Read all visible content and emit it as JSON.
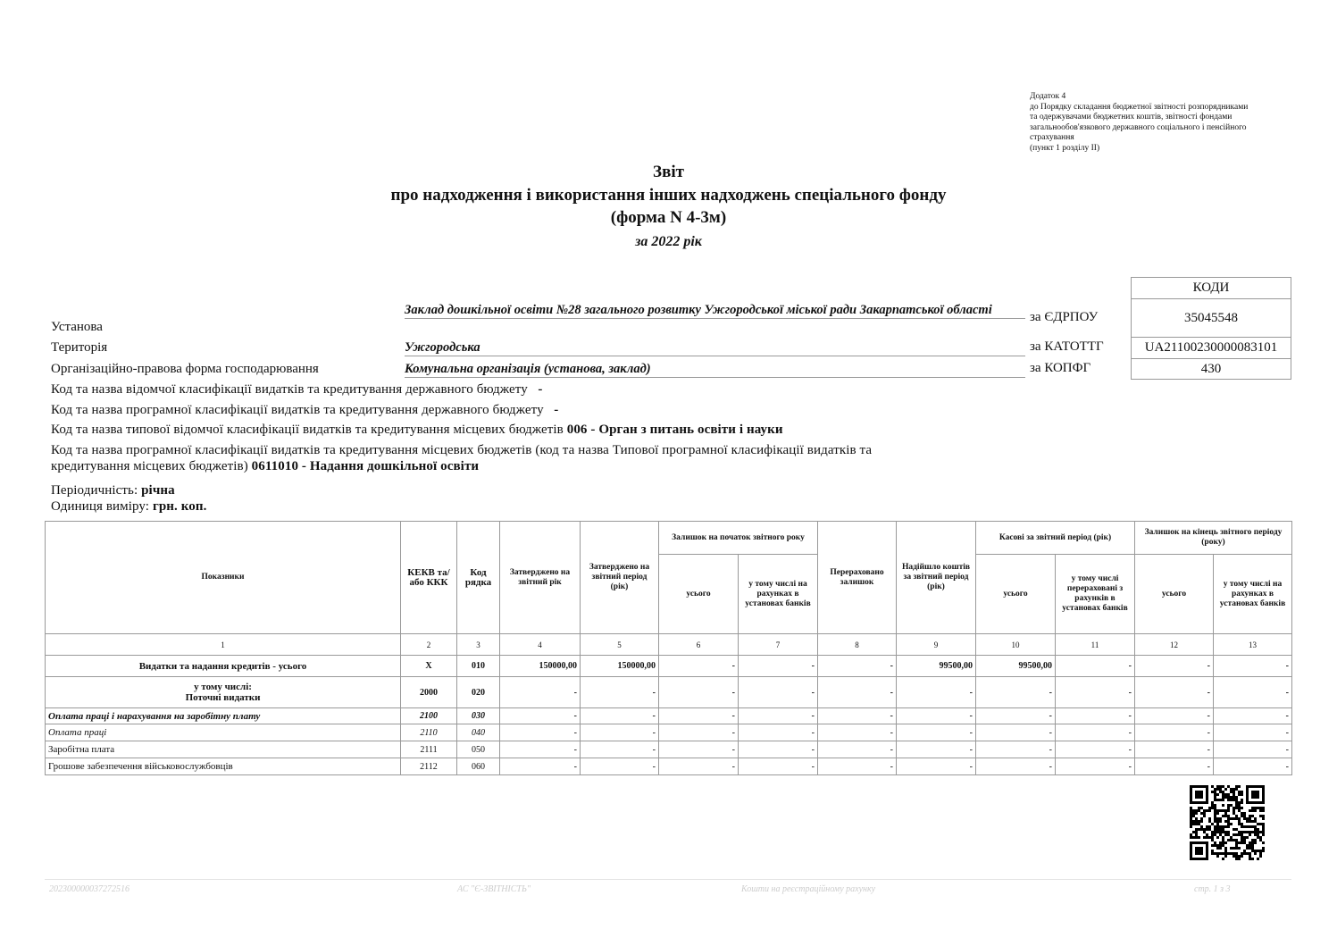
{
  "appendix": [
    "Додаток 4",
    "до Порядку складання бюджетної звітності розпорядниками",
    "та одержувачами бюджетних коштів, звітності фондами",
    "загальнообов'язкового державного соціального і пенсійного",
    "страхування",
    "(пункт 1 розділу ІІ)"
  ],
  "title": {
    "line1": "Звіт",
    "line2": "про надходження і використання інших надходжень спеціального фонду",
    "line3": "(форма N 4-3м)",
    "period": "за 2022 рік"
  },
  "codes": {
    "header": "КОДИ",
    "edrpou_label": "за ЄДРПОУ",
    "edrpou": "35045548",
    "katottg_label": "за КАТОТТГ",
    "katottg": "UA21100230000083101",
    "kopfg_label": "за КОПФГ",
    "kopfg": "430"
  },
  "fields": {
    "institution_label": "Установа",
    "institution": "Заклад дошкільної освіти №28 загального розвитку Ужгородської міської ради Закарпатської області",
    "territory_label": "Територія",
    "territory": "Ужгородська",
    "form_label": "Організаційно-правова форма господарювання",
    "form": "Комунальна організація (установа, заклад)"
  },
  "classif": {
    "l1": "Код та назва відомчої класифікації видатків та кредитування державного бюджету",
    "v1": "-",
    "l2": "Код та назва програмної класифікації видатків та кредитування державного бюджету",
    "v2": "-",
    "l3": "Код та назва типової відомчої класифікації видатків та кредитування місцевих бюджетів",
    "v3": "006 - Орган з питань освіти і науки",
    "l4a": "Код та назва програмної класифікації видатків та кредитування місцевих бюджетів (код та назва Типової програмної класифікації видатків та",
    "l4b": "кредитування місцевих бюджетів)",
    "v4": "0611010  - Надання дошкільної освіти"
  },
  "periodicity_label": "Періодичність:",
  "periodicity": "річна",
  "unit_label": "Одиниця виміру:",
  "unit": "грн. коп.",
  "table": {
    "h": {
      "c1": "Показники",
      "c2": "КЕКВ та/або ККК",
      "c3": "Код рядка",
      "c4": "Затверджено на звітний рік",
      "c5": "Затверджено на звітний період (рік)",
      "g67": "Залишок на початок звітного року",
      "c6": "усього",
      "c7": "у тому числі на рахунках в установах банків",
      "c8": "Перераховано залишок",
      "c9": "Надійшло коштів за звітний період (рік)",
      "g1011": "Касові за звітний період (рік)",
      "c10": "усього",
      "c11": "у тому числі перераховані з рахунків в установах банків",
      "g1213": "Залишок на кінець звітного періоду (року)",
      "c12": "усього",
      "c13": "у тому числі на рахунках в установах банків"
    },
    "col_numbers": [
      "1",
      "2",
      "3",
      "4",
      "5",
      "6",
      "7",
      "8",
      "9",
      "10",
      "11",
      "12",
      "13"
    ],
    "rows": [
      {
        "name": "Видатки та надання кредитів - усього",
        "kekv": "X",
        "code": "010",
        "v": [
          "150000,00",
          "150000,00",
          "-",
          "-",
          "-",
          "99500,00",
          "99500,00",
          "-",
          "-",
          "-"
        ]
      },
      {
        "name": "у тому числі:",
        "name2": "Поточні  видатки",
        "kekv": "2000",
        "code": "020",
        "v": [
          "-",
          "-",
          "-",
          "-",
          "-",
          "-",
          "-",
          "-",
          "-",
          "-"
        ]
      },
      {
        "name": "Оплата праці і нарахування на заробітну плату",
        "kekv": "2100",
        "code": "030",
        "v": [
          "-",
          "-",
          "-",
          "-",
          "-",
          "-",
          "-",
          "-",
          "-",
          "-"
        ]
      },
      {
        "name": "Оплата праці",
        "kekv": "2110",
        "code": "040",
        "v": [
          "-",
          "-",
          "-",
          "-",
          "-",
          "-",
          "-",
          "-",
          "-",
          "-"
        ]
      },
      {
        "name": "Заробітна плата",
        "kekv": "2111",
        "code": "050",
        "v": [
          "-",
          "-",
          "-",
          "-",
          "-",
          "-",
          "-",
          "-",
          "-",
          "-"
        ]
      },
      {
        "name": "Грошове  забезпечення військовослужбовців",
        "kekv": "2112",
        "code": "060",
        "v": [
          "-",
          "-",
          "-",
          "-",
          "-",
          "-",
          "-",
          "-",
          "-",
          "-"
        ]
      }
    ]
  },
  "footer": {
    "doc_id": "202300000037272516",
    "system": "АС \"Є-ЗВІТНІСТЬ\"",
    "account": "Кошти на реєстраційному рахунку",
    "page": "стр. 1 з 3"
  }
}
